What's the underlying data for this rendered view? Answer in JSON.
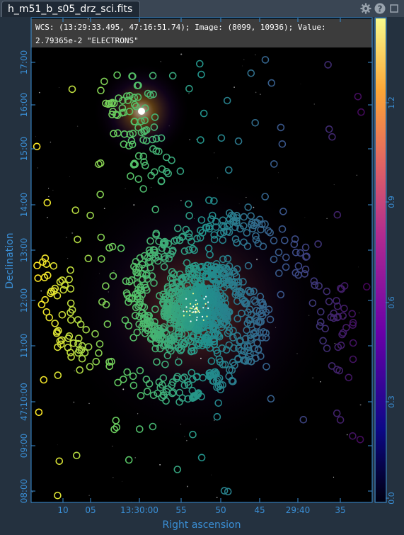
{
  "tab": {
    "title": "h_m51_b_s05_drz_sci.fits"
  },
  "toolbar": {
    "icons": [
      "gear-icon",
      "help-icon",
      "maximize-icon"
    ]
  },
  "status": {
    "line1": "WCS: (13:29:33.495, 47:16:51.74); Image: (8099, 10936); Value:",
    "line2": "2.79365e-2 \"ELECTRONS\""
  },
  "axes": {
    "xlabel": "Right ascension",
    "ylabel": "Declination",
    "xticks": [
      "10",
      "05",
      "13:30:00",
      "55",
      "50",
      "45",
      "29:40",
      "35"
    ],
    "yticks": [
      "17:00",
      "16:00",
      "15:00",
      "14:00",
      "13:00",
      "12:00",
      "11:00",
      "47:10:00",
      "09:00",
      "08:00"
    ]
  },
  "colorbar": {
    "ticks": [
      "1.2",
      "0.9",
      "0.6",
      "0.3",
      "0.0"
    ],
    "colors": [
      "#f8fb8c",
      "#fca636",
      "#e16462",
      "#b12a90",
      "#6a00a8",
      "#0d0887",
      "#000010"
    ]
  },
  "colors": {
    "axis": "#3a8fd6",
    "background": "#24313f",
    "tab_bg": "#1f2935"
  }
}
